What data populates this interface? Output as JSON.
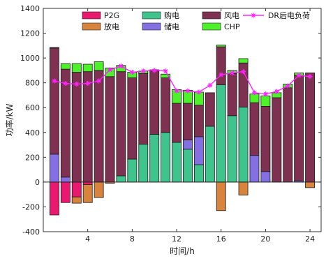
{
  "chart_data": {
    "type": "bar",
    "xlabel": "时间/h",
    "ylabel": "功率/kW",
    "xlim": [
      0,
      25
    ],
    "ylim": [
      -400,
      1400
    ],
    "xticks": [
      "4",
      "8",
      "12",
      "16",
      "20",
      "24"
    ],
    "xtick_values": [
      4,
      8,
      12,
      16,
      20,
      24
    ],
    "yticks": [
      "-400",
      "-200",
      "0",
      "200",
      "400",
      "600",
      "800",
      "1000",
      "1200",
      "1400"
    ],
    "ytick_values": [
      -400,
      -200,
      0,
      200,
      400,
      600,
      800,
      1000,
      1200,
      1400
    ],
    "hours": [
      1,
      2,
      3,
      4,
      5,
      6,
      7,
      8,
      9,
      10,
      11,
      12,
      13,
      14,
      15,
      16,
      17,
      18,
      19,
      20,
      21,
      22,
      23,
      24
    ],
    "stack_positive": [
      "购电",
      "储电",
      "风电",
      "CHP"
    ],
    "stack_negative": [
      "P2G",
      "放电"
    ],
    "series": [
      {
        "name": "P2G",
        "color": "#e8196f",
        "values": [
          -265,
          -165,
          -120,
          -20,
          0,
          0,
          0,
          0,
          0,
          0,
          0,
          0,
          0,
          0,
          0,
          0,
          0,
          0,
          0,
          0,
          0,
          0,
          0,
          0
        ]
      },
      {
        "name": "放电",
        "color": "#d8843c",
        "values": [
          0,
          0,
          -50,
          -145,
          -125,
          -10,
          0,
          0,
          0,
          0,
          0,
          0,
          0,
          0,
          0,
          -230,
          0,
          -105,
          0,
          0,
          0,
          0,
          0,
          -45
        ]
      },
      {
        "name": "购电",
        "color": "#3ec48c",
        "values": [
          0,
          0,
          0,
          0,
          0,
          0,
          50,
          185,
          305,
          385,
          400,
          320,
          265,
          140,
          450,
          785,
          535,
          605,
          0,
          0,
          0,
          0,
          0,
          0
        ]
      },
      {
        "name": "储电",
        "color": "#8470e2",
        "values": [
          225,
          40,
          0,
          0,
          0,
          0,
          0,
          0,
          0,
          0,
          0,
          0,
          75,
          225,
          0,
          0,
          0,
          0,
          215,
          85,
          0,
          0,
          10,
          0
        ]
      },
      {
        "name": "风电",
        "color": "#7e3150",
        "values": [
          855,
          870,
          885,
          890,
          900,
          850,
          840,
          655,
          570,
          520,
          440,
          315,
          295,
          255,
          270,
          305,
          340,
          355,
          425,
          525,
          680,
          760,
          850,
          880
        ]
      },
      {
        "name": "CHP",
        "color": "#4ef22a",
        "values": [
          5,
          45,
          70,
          60,
          70,
          70,
          50,
          45,
          20,
          0,
          30,
          110,
          105,
          105,
          0,
          15,
          25,
          35,
          70,
          85,
          40,
          30,
          20,
          0
        ]
      }
    ],
    "line": {
      "name": "DR后电负荷",
      "color": "#ff22ff",
      "values": [
        815,
        795,
        790,
        795,
        815,
        905,
        935,
        885,
        895,
        900,
        895,
        735,
        735,
        725,
        780,
        865,
        880,
        890,
        720,
        710,
        730,
        775,
        860,
        850
      ]
    },
    "legend": {
      "placement": "top-center",
      "order": [
        "P2G",
        "购电",
        "风电",
        "DR后电负荷",
        "放电",
        "储电",
        "CHP"
      ]
    }
  }
}
